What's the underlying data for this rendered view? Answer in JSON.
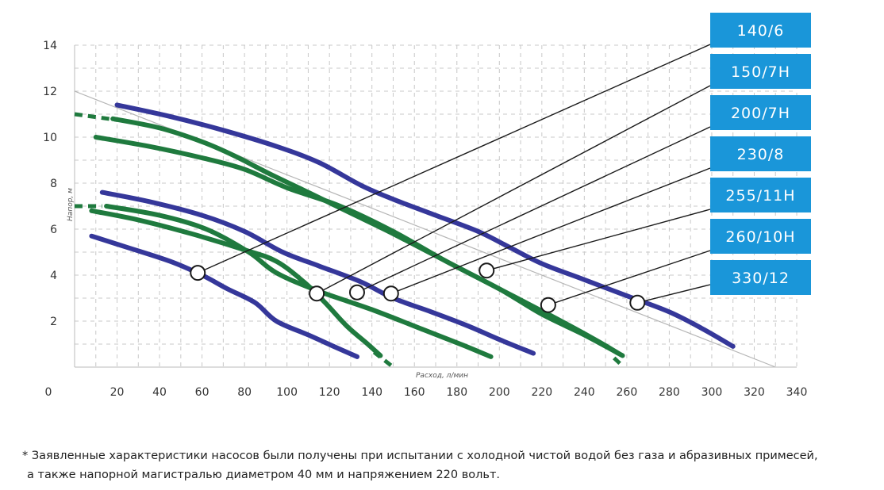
{
  "chart_data": {
    "type": "line",
    "x_ticks": [
      0,
      20,
      40,
      60,
      80,
      100,
      120,
      140,
      160,
      180,
      200,
      220,
      240,
      260,
      280,
      300,
      320,
      340
    ],
    "y_ticks": [
      2,
      4,
      6,
      8,
      10,
      12,
      14
    ],
    "xlim": [
      0,
      340
    ],
    "ylim": [
      0,
      14
    ],
    "xlabel": "Расход, л/мин",
    "ylabel": "Напор, м",
    "grid": true,
    "colors": {
      "blue": "#35379a",
      "green": "#1f7a3e",
      "leader": "#1a1a1a",
      "badge": "#1a96d9"
    },
    "series": [
      {
        "color": "blue",
        "points": [
          [
            8,
            5.7
          ],
          [
            25,
            5.2
          ],
          [
            45,
            4.6
          ],
          [
            60,
            4.0
          ],
          [
            72,
            3.4
          ],
          [
            85,
            2.8
          ],
          [
            95,
            2.0
          ],
          [
            110,
            1.4
          ],
          [
            122,
            0.9
          ],
          [
            133,
            0.45
          ]
        ]
      },
      {
        "color": "green",
        "points": [
          [
            8,
            6.8
          ],
          [
            30,
            6.4
          ],
          [
            55,
            5.8
          ],
          [
            80,
            5.1
          ],
          [
            95,
            4.6
          ],
          [
            108,
            3.7
          ],
          [
            118,
            2.8
          ],
          [
            128,
            1.8
          ],
          [
            138,
            1.0
          ],
          [
            144,
            0.5
          ]
        ]
      },
      {
        "color": "green",
        "points": [
          [
            15,
            7.0
          ],
          [
            40,
            6.6
          ],
          [
            62,
            6.0
          ],
          [
            82,
            5.0
          ],
          [
            95,
            4.1
          ],
          [
            115,
            3.3
          ],
          [
            140,
            2.5
          ],
          [
            165,
            1.6
          ],
          [
            183,
            0.95
          ],
          [
            196,
            0.45
          ]
        ]
      },
      {
        "color": "blue",
        "points": [
          [
            13,
            7.6
          ],
          [
            35,
            7.2
          ],
          [
            60,
            6.6
          ],
          [
            80,
            5.9
          ],
          [
            98,
            5.0
          ],
          [
            115,
            4.4
          ],
          [
            135,
            3.7
          ],
          [
            150,
            3.0
          ],
          [
            168,
            2.4
          ],
          [
            185,
            1.8
          ],
          [
            200,
            1.2
          ],
          [
            216,
            0.6
          ]
        ]
      },
      {
        "color": "green",
        "points": [
          [
            10,
            10.0
          ],
          [
            35,
            9.6
          ],
          [
            60,
            9.1
          ],
          [
            80,
            8.6
          ],
          [
            100,
            7.8
          ],
          [
            125,
            7.0
          ],
          [
            150,
            5.9
          ],
          [
            175,
            4.6
          ],
          [
            200,
            3.4
          ],
          [
            220,
            2.3
          ],
          [
            240,
            1.4
          ],
          [
            258,
            0.5
          ]
        ]
      },
      {
        "color": "green",
        "points": [
          [
            18,
            10.8
          ],
          [
            40,
            10.4
          ],
          [
            60,
            9.8
          ],
          [
            75,
            9.2
          ],
          [
            92,
            8.4
          ],
          [
            110,
            7.6
          ],
          [
            130,
            6.7
          ],
          [
            150,
            5.8
          ],
          [
            175,
            4.6
          ],
          [
            200,
            3.4
          ],
          [
            225,
            2.2
          ],
          [
            245,
            1.2
          ],
          [
            256,
            0.6
          ]
        ]
      },
      {
        "color": "blue",
        "points": [
          [
            20,
            11.4
          ],
          [
            45,
            10.9
          ],
          [
            70,
            10.3
          ],
          [
            95,
            9.6
          ],
          [
            115,
            8.9
          ],
          [
            135,
            7.9
          ],
          [
            150,
            7.3
          ],
          [
            170,
            6.6
          ],
          [
            190,
            5.9
          ],
          [
            205,
            5.2
          ],
          [
            220,
            4.5
          ],
          [
            240,
            3.8
          ],
          [
            260,
            3.1
          ],
          [
            280,
            2.4
          ],
          [
            295,
            1.7
          ],
          [
            310,
            0.9
          ]
        ]
      }
    ],
    "dashed_stubs": [
      {
        "color": "green",
        "points": [
          [
            0,
            11.0
          ],
          [
            20,
            10.75
          ]
        ]
      },
      {
        "color": "green",
        "points": [
          [
            0,
            7.0
          ],
          [
            13,
            7.0
          ]
        ]
      },
      {
        "color": "green",
        "points": [
          [
            141,
            0.65
          ],
          [
            150,
            0.0
          ]
        ]
      },
      {
        "color": "green",
        "points": [
          [
            254,
            0.4
          ],
          [
            258,
            0.05
          ]
        ]
      }
    ],
    "guide_line": [
      [
        0,
        12.0
      ],
      [
        330,
        0.0
      ]
    ],
    "markers": [
      {
        "label": "140/6",
        "point": [
          58,
          4.1
        ]
      },
      {
        "label": "150/7H",
        "point": [
          114,
          3.2
        ]
      },
      {
        "label": "200/7H",
        "point": [
          133,
          3.25
        ]
      },
      {
        "label": "230/8",
        "point": [
          149,
          3.2
        ]
      },
      {
        "label": "255/11H",
        "point": [
          194,
          4.2
        ]
      },
      {
        "label": "260/10H",
        "point": [
          223,
          2.7
        ]
      },
      {
        "label": "330/12",
        "point": [
          265,
          2.8
        ]
      }
    ]
  },
  "footnote": {
    "line1": "* Заявленные характеристики насосов были получены при испытании с холодной чистой водой без газа и абразивных примесей,",
    "line2": "а также напорной магистралью диаметром 40 мм и напряжением 220 вольт."
  }
}
